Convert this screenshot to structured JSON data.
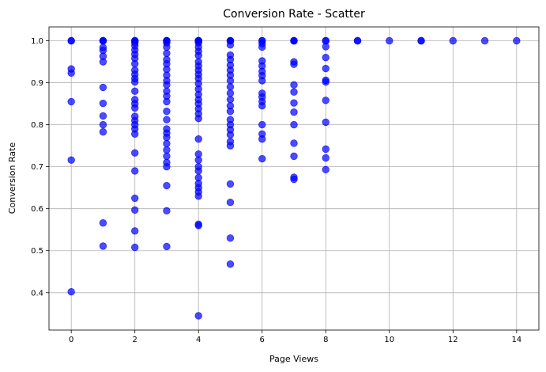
{
  "chart_data": {
    "type": "scatter",
    "title": "Conversion Rate - Scatter",
    "xlabel": "Page Views",
    "ylabel": "Conversion Rate",
    "xlim": [
      -0.7,
      14.7
    ],
    "ylim": [
      0.311,
      1.033
    ],
    "xticks": [
      0,
      2,
      4,
      6,
      8,
      10,
      12,
      14
    ],
    "yticks": [
      0.4,
      0.5,
      0.6,
      0.7,
      0.8,
      0.9,
      1.0
    ],
    "xtick_labels": [
      "0",
      "2",
      "4",
      "6",
      "8",
      "10",
      "12",
      "14"
    ],
    "ytick_labels": [
      "0.4",
      "0.5",
      "0.6",
      "0.7",
      "0.8",
      "0.9",
      "1.0"
    ],
    "grid": true,
    "marker_color": "#0000ff",
    "marker_opacity": 0.7,
    "series": [
      {
        "x": 0,
        "values": [
          1.0,
          1.0,
          0.933,
          0.923,
          0.855,
          0.716,
          0.402
        ]
      },
      {
        "x": 1,
        "values": [
          1.0,
          1.0,
          1.0,
          0.984,
          0.977,
          0.963,
          0.95,
          0.889,
          0.851,
          0.821,
          0.8,
          0.783,
          0.566,
          0.511
        ]
      },
      {
        "x": 2,
        "values": [
          1.0,
          1.0,
          1.0,
          0.995,
          0.988,
          0.978,
          0.968,
          0.958,
          0.945,
          0.93,
          0.92,
          0.91,
          0.902,
          0.88,
          0.86,
          0.85,
          0.84,
          0.82,
          0.81,
          0.8,
          0.79,
          0.778,
          0.733,
          0.69,
          0.625,
          0.597,
          0.547,
          0.508
        ]
      },
      {
        "x": 3,
        "values": [
          1.0,
          1.0,
          1.0,
          1.0,
          0.995,
          0.985,
          0.97,
          0.955,
          0.945,
          0.932,
          0.918,
          0.905,
          0.895,
          0.88,
          0.868,
          0.855,
          0.832,
          0.812,
          0.79,
          0.78,
          0.77,
          0.755,
          0.74,
          0.725,
          0.71,
          0.7,
          0.655,
          0.595,
          0.51
        ]
      },
      {
        "x": 4,
        "values": [
          1.0,
          1.0,
          1.0,
          1.0,
          1.0,
          0.995,
          0.985,
          0.975,
          0.965,
          0.95,
          0.94,
          0.93,
          0.92,
          0.91,
          0.898,
          0.885,
          0.872,
          0.86,
          0.85,
          0.838,
          0.826,
          0.815,
          0.766,
          0.73,
          0.716,
          0.7,
          0.69,
          0.674,
          0.66,
          0.65,
          0.64,
          0.63,
          0.563,
          0.56,
          0.345
        ]
      },
      {
        "x": 5,
        "values": [
          1.0,
          1.0,
          1.0,
          0.99,
          0.966,
          0.955,
          0.942,
          0.93,
          0.918,
          0.905,
          0.89,
          0.875,
          0.86,
          0.845,
          0.832,
          0.812,
          0.8,
          0.788,
          0.776,
          0.76,
          0.75,
          0.659,
          0.615,
          0.53,
          0.468
        ]
      },
      {
        "x": 6,
        "values": [
          1.0,
          1.0,
          0.993,
          0.985,
          0.952,
          0.94,
          0.927,
          0.917,
          0.905,
          0.875,
          0.866,
          0.855,
          0.845,
          0.8,
          0.778,
          0.766,
          0.719
        ]
      },
      {
        "x": 7,
        "values": [
          1.0,
          1.0,
          1.0,
          0.95,
          0.944,
          0.895,
          0.878,
          0.852,
          0.83,
          0.8,
          0.756,
          0.725,
          0.675,
          0.67
        ]
      },
      {
        "x": 8,
        "values": [
          1.0,
          1.0,
          0.986,
          0.96,
          0.934,
          0.906,
          0.902,
          0.858,
          0.806,
          0.742,
          0.721,
          0.693
        ]
      },
      {
        "x": 9,
        "values": [
          1.0,
          1.0
        ]
      },
      {
        "x": 10,
        "values": [
          1.0
        ]
      },
      {
        "x": 11,
        "values": [
          1.0,
          1.0
        ]
      },
      {
        "x": 12,
        "values": [
          1.0
        ]
      },
      {
        "x": 13,
        "values": [
          1.0
        ]
      },
      {
        "x": 14,
        "values": [
          1.0
        ]
      }
    ]
  }
}
